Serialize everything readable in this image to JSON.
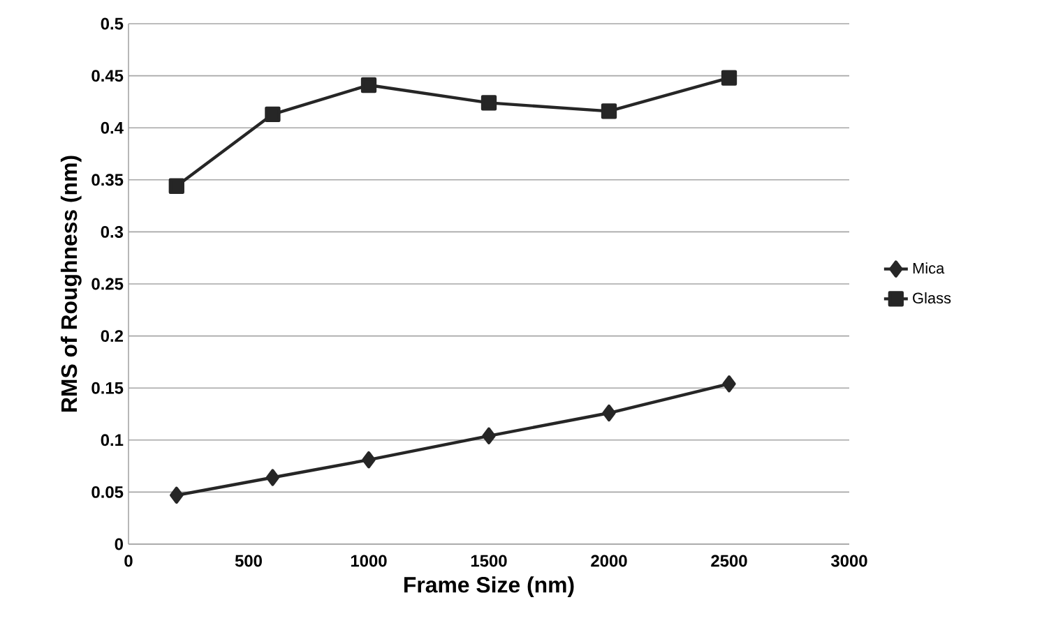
{
  "chart_data": {
    "type": "line",
    "xlabel": "Frame Size (nm)",
    "ylabel": "RMS of Roughness (nm)",
    "x": [
      200,
      600,
      1000,
      1500,
      2000,
      2500
    ],
    "series": [
      {
        "name": "Mica",
        "color": "#262626",
        "marker": "diamond",
        "values": [
          0.047,
          0.064,
          0.081,
          0.104,
          0.126,
          0.154
        ]
      },
      {
        "name": "Glass",
        "color": "#262626",
        "marker": "square",
        "values": [
          0.344,
          0.413,
          0.441,
          0.424,
          0.416,
          0.448
        ]
      }
    ],
    "xlim": [
      0,
      3000
    ],
    "xticks": [
      0,
      500,
      1000,
      1500,
      2000,
      2500,
      3000
    ],
    "ylim": [
      0,
      0.5
    ],
    "yticks": [
      0,
      {
        "value": 0.05,
        "label": "0.05"
      },
      {
        "value": 0.1,
        "label": "0.1"
      },
      {
        "value": 0.15,
        "label": "0.15"
      },
      {
        "value": 0.2,
        "label": "0.2"
      },
      {
        "value": 0.25,
        "label": "0.25"
      },
      {
        "value": 0.3,
        "label": "0.3"
      },
      {
        "value": 0.35,
        "label": "0.35"
      },
      {
        "value": 0.4,
        "label": "0.4"
      },
      {
        "value": 0.45,
        "label": "0.45"
      },
      {
        "value": 0.5,
        "label": "0.5"
      }
    ],
    "grid": "y",
    "legend": "right",
    "line_style": "solid"
  }
}
